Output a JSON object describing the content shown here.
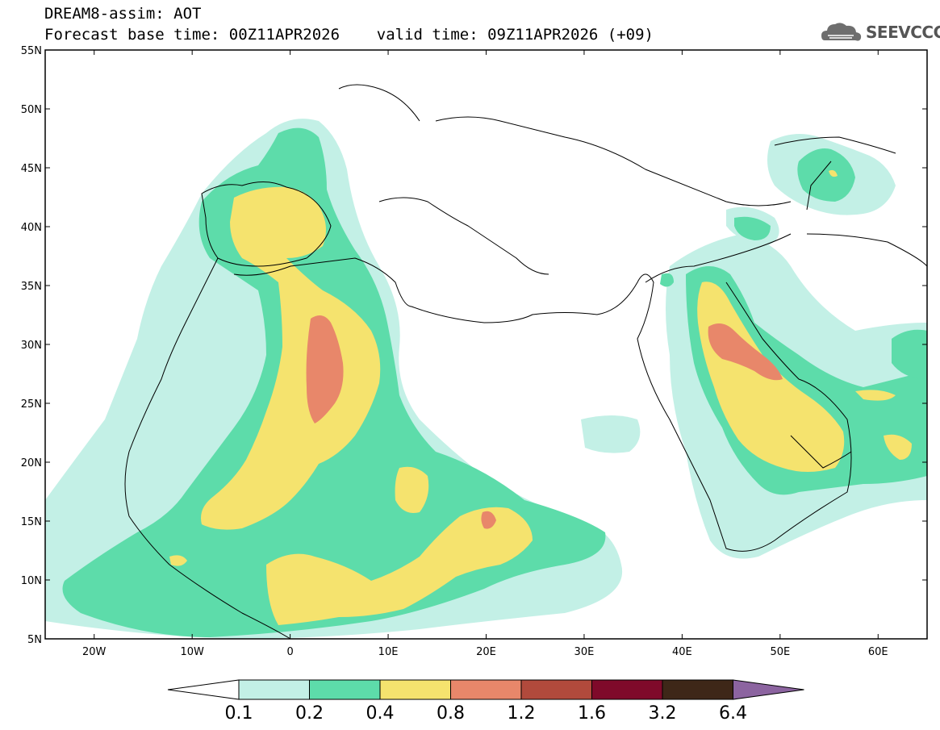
{
  "header": {
    "title": "DREAM8-assim: AOT",
    "forecast_line": "Forecast base time: 00Z11APR2026    valid time: 09Z11APR2026 (+09)"
  },
  "logo": {
    "text": "SEEVCCC",
    "icon": "cloud-icon"
  },
  "map": {
    "lat_labels": [
      "55N",
      "50N",
      "45N",
      "40N",
      "35N",
      "30N",
      "25N",
      "20N",
      "15N",
      "10N",
      "5N"
    ],
    "lon_labels": [
      "20W",
      "10W",
      "0",
      "10E",
      "20E",
      "30E",
      "40E",
      "50E",
      "60E"
    ],
    "lon_range": [
      -25,
      65
    ],
    "lat_range": [
      5,
      55
    ]
  },
  "legend": {
    "levels": [
      "0.1",
      "0.2",
      "0.4",
      "0.8",
      "1.2",
      "1.6",
      "3.2",
      "6.4"
    ],
    "colors": [
      "#ffffff",
      "#c3f0e6",
      "#5ddcaa",
      "#f5e36e",
      "#e8876a",
      "#b14a3c",
      "#7f0a2a",
      "#3e2718",
      "#8c64a0"
    ]
  }
}
